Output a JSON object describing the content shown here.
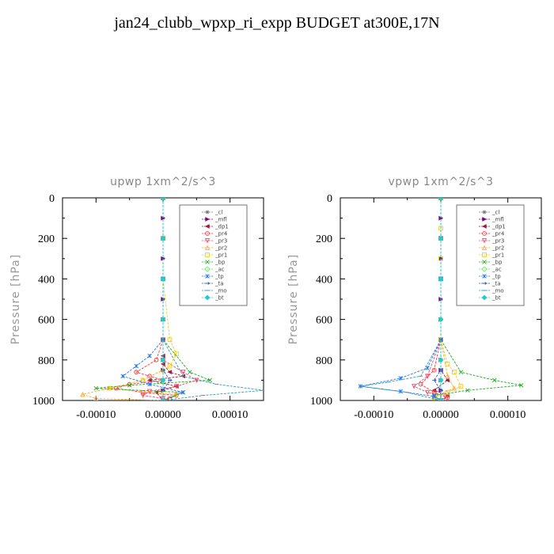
{
  "title": "jan24_clubb_wpxp_ri_expp  BUDGET at300E,17N",
  "chart_data": [
    {
      "type": "line",
      "title": "upwp   1xm^2/s^3",
      "ylabel": "Pressure [hPa]",
      "xlim": [
        -0.00015,
        0.00015
      ],
      "ylim": [
        1000,
        0
      ],
      "xticks": [
        -0.0001,
        0,
        0.0001
      ],
      "xtick_labels": [
        "-0.00010",
        "0.00000",
        "0.00010"
      ],
      "yticks": [
        0,
        200,
        400,
        600,
        800,
        1000
      ],
      "ytick_labels": [
        "0",
        "200",
        "400",
        "600",
        "800",
        "1000"
      ],
      "legend_position": "top-right",
      "series": [
        {
          "name": "_cl",
          "color": "#777777",
          "marker": "star",
          "x": [
            0,
            0,
            0,
            0,
            0,
            0,
            0,
            0,
            0,
            0,
            0,
            0,
            0
          ],
          "y": [
            0,
            100,
            200,
            300,
            400,
            500,
            600,
            700,
            800,
            850,
            900,
            950,
            1000
          ]
        },
        {
          "name": "_mfl",
          "color": "#800080",
          "marker": "triangle-right",
          "x": [
            0,
            0,
            0,
            0,
            0,
            0,
            0,
            0,
            0,
            0,
            0,
            0,
            0
          ],
          "y": [
            0,
            100,
            200,
            300,
            400,
            500,
            600,
            700,
            800,
            850,
            900,
            950,
            1000
          ]
        },
        {
          "name": "_dp1",
          "color": "#9b1b3f",
          "marker": "triangle-left",
          "x": [
            0,
            0,
            0,
            0,
            0,
            0,
            0,
            1e-05,
            3e-05,
            -2e-05,
            2e-05,
            -1e-05,
            0
          ],
          "y": [
            0,
            200,
            400,
            600,
            700,
            780,
            820,
            860,
            880,
            900,
            930,
            960,
            1000
          ]
        },
        {
          "name": "_pr4",
          "color": "#ff3333",
          "marker": "circle",
          "x": [
            0,
            0,
            0,
            0,
            -1e-05,
            -4e-05,
            -2e-05,
            0,
            -5e-05,
            -7e-05,
            -3e-05,
            2e-05,
            1e-05,
            0
          ],
          "y": [
            0,
            200,
            400,
            700,
            800,
            860,
            880,
            900,
            920,
            940,
            960,
            975,
            990,
            1000
          ]
        },
        {
          "name": "_pr3",
          "color": "#ff4466",
          "marker": "triangle-down",
          "x": [
            0,
            0,
            0,
            0,
            0,
            3e-05,
            5e-05,
            2e-05,
            -2e-05,
            -3e-05,
            0,
            0
          ],
          "y": [
            0,
            200,
            400,
            700,
            800,
            860,
            900,
            930,
            955,
            975,
            990,
            1000
          ]
        },
        {
          "name": "_pr2",
          "color": "#ffaa33",
          "marker": "triangle-up",
          "x": [
            0,
            0,
            0,
            0,
            0,
            -3e-05,
            -8e-05,
            -0.00012,
            -0.0001,
            0
          ],
          "y": [
            0,
            200,
            400,
            700,
            850,
            900,
            940,
            970,
            990,
            1000
          ]
        },
        {
          "name": "_pr1",
          "color": "#eecc22",
          "marker": "square",
          "x": [
            0,
            0,
            0,
            1e-05,
            2e-05,
            1e-05,
            -3e-05,
            -8e-05,
            2e-05,
            0
          ],
          "y": [
            0,
            200,
            400,
            700,
            770,
            830,
            900,
            940,
            970,
            1000
          ]
        },
        {
          "name": "_bp",
          "color": "#22aa22",
          "marker": "cross",
          "x": [
            0,
            0,
            0,
            0,
            4e-05,
            7e-05,
            -5e-05,
            -0.0001,
            3e-05,
            0
          ],
          "y": [
            0,
            200,
            400,
            700,
            860,
            900,
            925,
            940,
            960,
            1000
          ]
        },
        {
          "name": "_ac",
          "color": "#55ee55",
          "marker": "circle",
          "x": [
            0,
            0,
            0,
            0,
            0,
            0,
            0
          ],
          "y": [
            0,
            200,
            400,
            600,
            800,
            900,
            1000
          ]
        },
        {
          "name": "_tp",
          "color": "#2277ee",
          "marker": "asterisk",
          "x": [
            0,
            0,
            0,
            0,
            -2e-05,
            -4e-05,
            -6e-05,
            -2e-05,
            3e-05,
            0
          ],
          "y": [
            0,
            200,
            400,
            700,
            780,
            830,
            880,
            920,
            960,
            1000
          ]
        },
        {
          "name": "_ta",
          "color": "#3355cc",
          "marker": "arrow",
          "x": [
            0,
            0,
            0,
            0,
            0,
            1e-05,
            0,
            0
          ],
          "y": [
            0,
            200,
            400,
            700,
            850,
            900,
            950,
            1000
          ]
        },
        {
          "name": "_mo",
          "color": "#3399bb",
          "marker": "dash",
          "x": [
            0,
            0,
            0,
            0,
            3e-05,
            8e-05,
            0.00015,
            6e-05,
            0
          ],
          "y": [
            0,
            200,
            400,
            700,
            880,
            920,
            950,
            975,
            1000
          ]
        },
        {
          "name": "_bt",
          "color": "#22cccc",
          "marker": "diamond",
          "x": [
            0,
            0,
            0,
            0,
            0,
            0,
            0
          ],
          "y": [
            0,
            200,
            400,
            600,
            800,
            900,
            1000
          ]
        }
      ]
    },
    {
      "type": "line",
      "title": "vpwp   1xm^2/s^3",
      "ylabel": "Pressure [hPa]",
      "xlim": [
        -0.00015,
        0.00015
      ],
      "ylim": [
        1000,
        0
      ],
      "xticks": [
        -0.0001,
        0,
        0.0001
      ],
      "xtick_labels": [
        "-0.00010",
        "0.00000",
        "0.00010"
      ],
      "yticks": [
        0,
        200,
        400,
        600,
        800,
        1000
      ],
      "ytick_labels": [
        "0",
        "200",
        "400",
        "600",
        "800",
        "1000"
      ],
      "legend_position": "top-right",
      "series": [
        {
          "name": "_cl",
          "color": "#777777",
          "marker": "star",
          "x": [
            0,
            0,
            0,
            0,
            0,
            0,
            0,
            0,
            0,
            0,
            0,
            0,
            0
          ],
          "y": [
            0,
            100,
            200,
            300,
            400,
            500,
            600,
            700,
            800,
            850,
            900,
            950,
            1000
          ]
        },
        {
          "name": "_mfl",
          "color": "#800080",
          "marker": "triangle-right",
          "x": [
            0,
            0,
            0,
            0,
            0,
            0,
            0,
            0,
            0,
            0,
            0,
            0,
            0
          ],
          "y": [
            0,
            100,
            200,
            300,
            400,
            500,
            600,
            700,
            800,
            850,
            900,
            950,
            1000
          ]
        },
        {
          "name": "_dp1",
          "color": "#9b1b3f",
          "marker": "triangle-left",
          "x": [
            0,
            0,
            0,
            0,
            0,
            1e-05,
            -1e-05,
            1e-05,
            0
          ],
          "y": [
            0,
            200,
            400,
            700,
            850,
            900,
            950,
            975,
            1000
          ]
        },
        {
          "name": "_pr4",
          "color": "#ff3333",
          "marker": "circle",
          "x": [
            0,
            0,
            0,
            0,
            -1e-05,
            -3e-05,
            -1e-05,
            1e-05,
            0
          ],
          "y": [
            0,
            200,
            400,
            700,
            850,
            920,
            960,
            985,
            1000
          ]
        },
        {
          "name": "_pr3",
          "color": "#ff4466",
          "marker": "triangle-down",
          "x": [
            0,
            0,
            0,
            0,
            -2e-05,
            -4e-05,
            -2e-05,
            1e-05,
            0
          ],
          "y": [
            0,
            200,
            400,
            700,
            880,
            930,
            960,
            980,
            1000
          ]
        },
        {
          "name": "_pr2",
          "color": "#ffaa33",
          "marker": "triangle-up",
          "x": [
            0,
            0,
            0,
            0,
            1e-05,
            2e-05,
            -1e-05,
            0
          ],
          "y": [
            0,
            200,
            400,
            700,
            880,
            940,
            980,
            1000
          ]
        },
        {
          "name": "_pr1",
          "color": "#eecc22",
          "marker": "square",
          "x": [
            0,
            0,
            0,
            0,
            1e-05,
            2e-05,
            3e-05,
            1e-05,
            -1e-05,
            0
          ],
          "y": [
            0,
            150,
            300,
            700,
            820,
            860,
            930,
            960,
            985,
            1000
          ]
        },
        {
          "name": "_bp",
          "color": "#22aa22",
          "marker": "cross",
          "x": [
            0,
            0,
            0,
            0,
            3e-05,
            8e-05,
            0.00012,
            4e-05,
            -1e-05,
            0
          ],
          "y": [
            0,
            200,
            400,
            700,
            860,
            900,
            925,
            950,
            975,
            1000
          ]
        },
        {
          "name": "_ac",
          "color": "#55ee55",
          "marker": "circle",
          "x": [
            0,
            0,
            0,
            0,
            0,
            0,
            0
          ],
          "y": [
            0,
            200,
            400,
            600,
            800,
            900,
            1000
          ]
        },
        {
          "name": "_tp",
          "color": "#2277ee",
          "marker": "asterisk",
          "x": [
            0,
            0,
            0,
            0,
            -2e-05,
            -6e-05,
            -0.00012,
            -6e-05,
            -1e-05,
            0
          ],
          "y": [
            0,
            200,
            400,
            700,
            840,
            890,
            930,
            955,
            980,
            1000
          ]
        },
        {
          "name": "_ta",
          "color": "#3355cc",
          "marker": "arrow",
          "x": [
            0,
            0,
            0,
            0,
            0,
            -1e-05,
            0,
            0
          ],
          "y": [
            0,
            200,
            400,
            700,
            850,
            900,
            950,
            1000
          ]
        },
        {
          "name": "_mo",
          "color": "#3399bb",
          "marker": "dash",
          "x": [
            0,
            0,
            0,
            0,
            -3e-05,
            -8e-05,
            -0.00012,
            -5e-05,
            0
          ],
          "y": [
            0,
            200,
            400,
            700,
            880,
            910,
            930,
            960,
            1000
          ]
        },
        {
          "name": "_bt",
          "color": "#22cccc",
          "marker": "diamond",
          "x": [
            0,
            0,
            0,
            0,
            0,
            0,
            0
          ],
          "y": [
            0,
            200,
            400,
            600,
            800,
            900,
            1000
          ]
        }
      ]
    }
  ]
}
